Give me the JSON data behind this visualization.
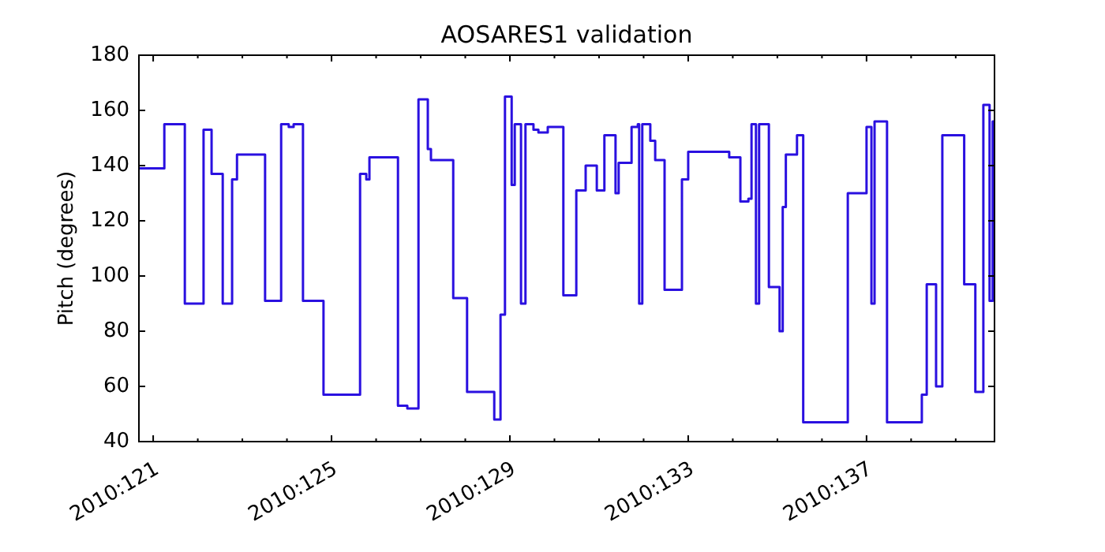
{
  "chart_data": {
    "type": "step",
    "title": "AOSARES1 validation",
    "ylabel": "Pitch (degrees)",
    "xlim": [
      "2010-04-30T16:19",
      "2010-05-19T20:53"
    ],
    "ylim": [
      40,
      180
    ],
    "xticks": [
      {
        "value": "2010-05-01",
        "label": "2010:121"
      },
      {
        "value": "2010-05-02",
        "label": null
      },
      {
        "value": "2010-05-03",
        "label": null
      },
      {
        "value": "2010-05-04",
        "label": null
      },
      {
        "value": "2010-05-05",
        "label": "2010:125"
      },
      {
        "value": "2010-05-06",
        "label": null
      },
      {
        "value": "2010-05-07",
        "label": null
      },
      {
        "value": "2010-05-08",
        "label": null
      },
      {
        "value": "2010-05-09",
        "label": "2010:129"
      },
      {
        "value": "2010-05-10",
        "label": null
      },
      {
        "value": "2010-05-11",
        "label": null
      },
      {
        "value": "2010-05-12",
        "label": null
      },
      {
        "value": "2010-05-13",
        "label": "2010:133"
      },
      {
        "value": "2010-05-14",
        "label": null
      },
      {
        "value": "2010-05-15",
        "label": null
      },
      {
        "value": "2010-05-16",
        "label": null
      },
      {
        "value": "2010-05-17",
        "label": "2010:137"
      },
      {
        "value": "2010-05-18",
        "label": null
      },
      {
        "value": "2010-05-19",
        "label": null
      }
    ],
    "yticks": [
      40,
      60,
      80,
      100,
      120,
      140,
      160,
      180
    ],
    "line_style": "solid",
    "series": [
      {
        "color": "#2a10e0",
        "x": [
          "2010-04-30T16:19",
          "2010-05-01T06:00",
          "2010-05-01T17:02",
          "2010-05-02T03:07",
          "2010-05-02T07:26",
          "2010-05-02T13:26",
          "2010-05-02T18:29",
          "2010-05-02T21:07",
          "2010-05-03T12:14",
          "2010-05-03T20:53",
          "2010-05-04T00:58",
          "2010-05-04T03:36",
          "2010-05-04T08:38",
          "2010-05-04T19:41",
          "2010-05-05T15:22",
          "2010-05-05T18:43",
          "2010-05-05T20:24",
          "2010-05-06T11:46",
          "2010-05-06T16:48",
          "2010-05-06T22:48",
          "2010-05-07T03:50",
          "2010-05-07T05:31",
          "2010-05-07T17:31",
          "2010-05-08T00:58",
          "2010-05-08T15:36",
          "2010-05-08T18:58",
          "2010-05-08T21:22",
          "2010-05-09T00:58",
          "2010-05-09T02:38",
          "2010-05-09T06:00",
          "2010-05-09T08:24",
          "2010-05-09T12:43",
          "2010-05-09T15:22",
          "2010-05-09T20:24",
          "2010-05-10T04:48",
          "2010-05-10T11:46",
          "2010-05-10T16:48",
          "2010-05-10T22:48",
          "2010-05-11T02:53",
          "2010-05-11T08:53",
          "2010-05-11T10:34",
          "2010-05-11T17:31",
          "2010-05-11T20:53",
          "2010-05-11T21:36",
          "2010-05-11T23:17",
          "2010-05-12T03:36",
          "2010-05-12T06:14",
          "2010-05-12T11:17",
          "2010-05-12T20:38",
          "2010-05-13T00:00",
          "2010-05-13T22:05",
          "2010-05-14T04:05",
          "2010-05-14T08:24",
          "2010-05-14T10:05",
          "2010-05-14T12:29",
          "2010-05-14T14:10",
          "2010-05-14T19:26",
          "2010-05-15T01:12",
          "2010-05-15T02:53",
          "2010-05-15T04:34",
          "2010-05-15T10:34",
          "2010-05-15T13:55",
          "2010-05-16T13:55",
          "2010-05-17T00:00",
          "2010-05-17T02:38",
          "2010-05-17T04:19",
          "2010-05-17T11:02",
          "2010-05-18T05:46",
          "2010-05-18T08:24",
          "2010-05-18T13:26",
          "2010-05-18T16:48",
          "2010-05-19T04:34",
          "2010-05-19T10:34",
          "2010-05-19T14:53",
          "2010-05-19T18:14",
          "2010-05-19T19:55",
          "2010-05-19T20:53"
        ],
        "values": [
          139,
          155,
          90,
          153,
          137,
          90,
          135,
          144,
          91,
          155,
          154,
          155,
          91,
          57,
          137,
          135,
          143,
          53,
          52,
          164,
          146,
          142,
          92,
          58,
          48,
          86,
          165,
          133,
          155,
          90,
          155,
          153,
          152,
          154,
          93,
          131,
          140,
          131,
          151,
          130,
          141,
          154,
          155,
          90,
          155,
          149,
          142,
          95,
          135,
          145,
          143,
          127,
          128,
          155,
          90,
          155,
          96,
          80,
          125,
          144,
          151,
          47,
          130,
          154,
          90,
          156,
          47,
          57,
          97,
          60,
          151,
          97,
          58,
          162,
          91,
          156,
          156
        ]
      }
    ]
  }
}
